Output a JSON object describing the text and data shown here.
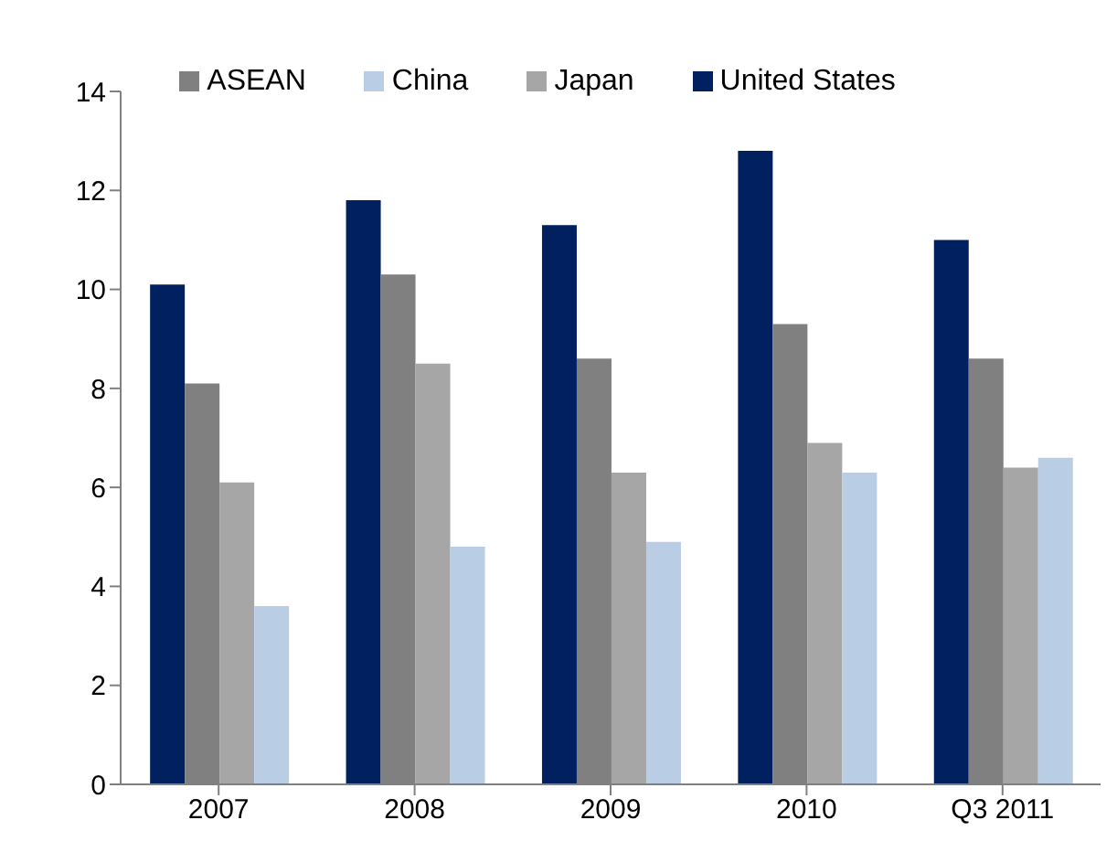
{
  "chart_data": {
    "type": "bar",
    "categories": [
      "2007",
      "2008",
      "2009",
      "2010",
      "Q3 2011"
    ],
    "series": [
      {
        "name": "United States",
        "color": "#002060",
        "values": [
          10.1,
          11.8,
          11.3,
          12.8,
          11.0
        ]
      },
      {
        "name": "ASEAN",
        "color": "#808080",
        "values": [
          8.1,
          10.3,
          8.6,
          9.3,
          8.6
        ]
      },
      {
        "name": "Japan",
        "color": "#a6a6a6",
        "values": [
          6.1,
          8.5,
          6.3,
          6.9,
          6.4
        ]
      },
      {
        "name": "China",
        "color": "#b9cde5",
        "values": [
          3.6,
          4.8,
          4.9,
          6.3,
          6.6
        ]
      }
    ],
    "ylim": [
      0,
      14
    ],
    "yticks": [
      0,
      2,
      4,
      6,
      8,
      10,
      12,
      14
    ],
    "grid": false,
    "legend": "top"
  }
}
